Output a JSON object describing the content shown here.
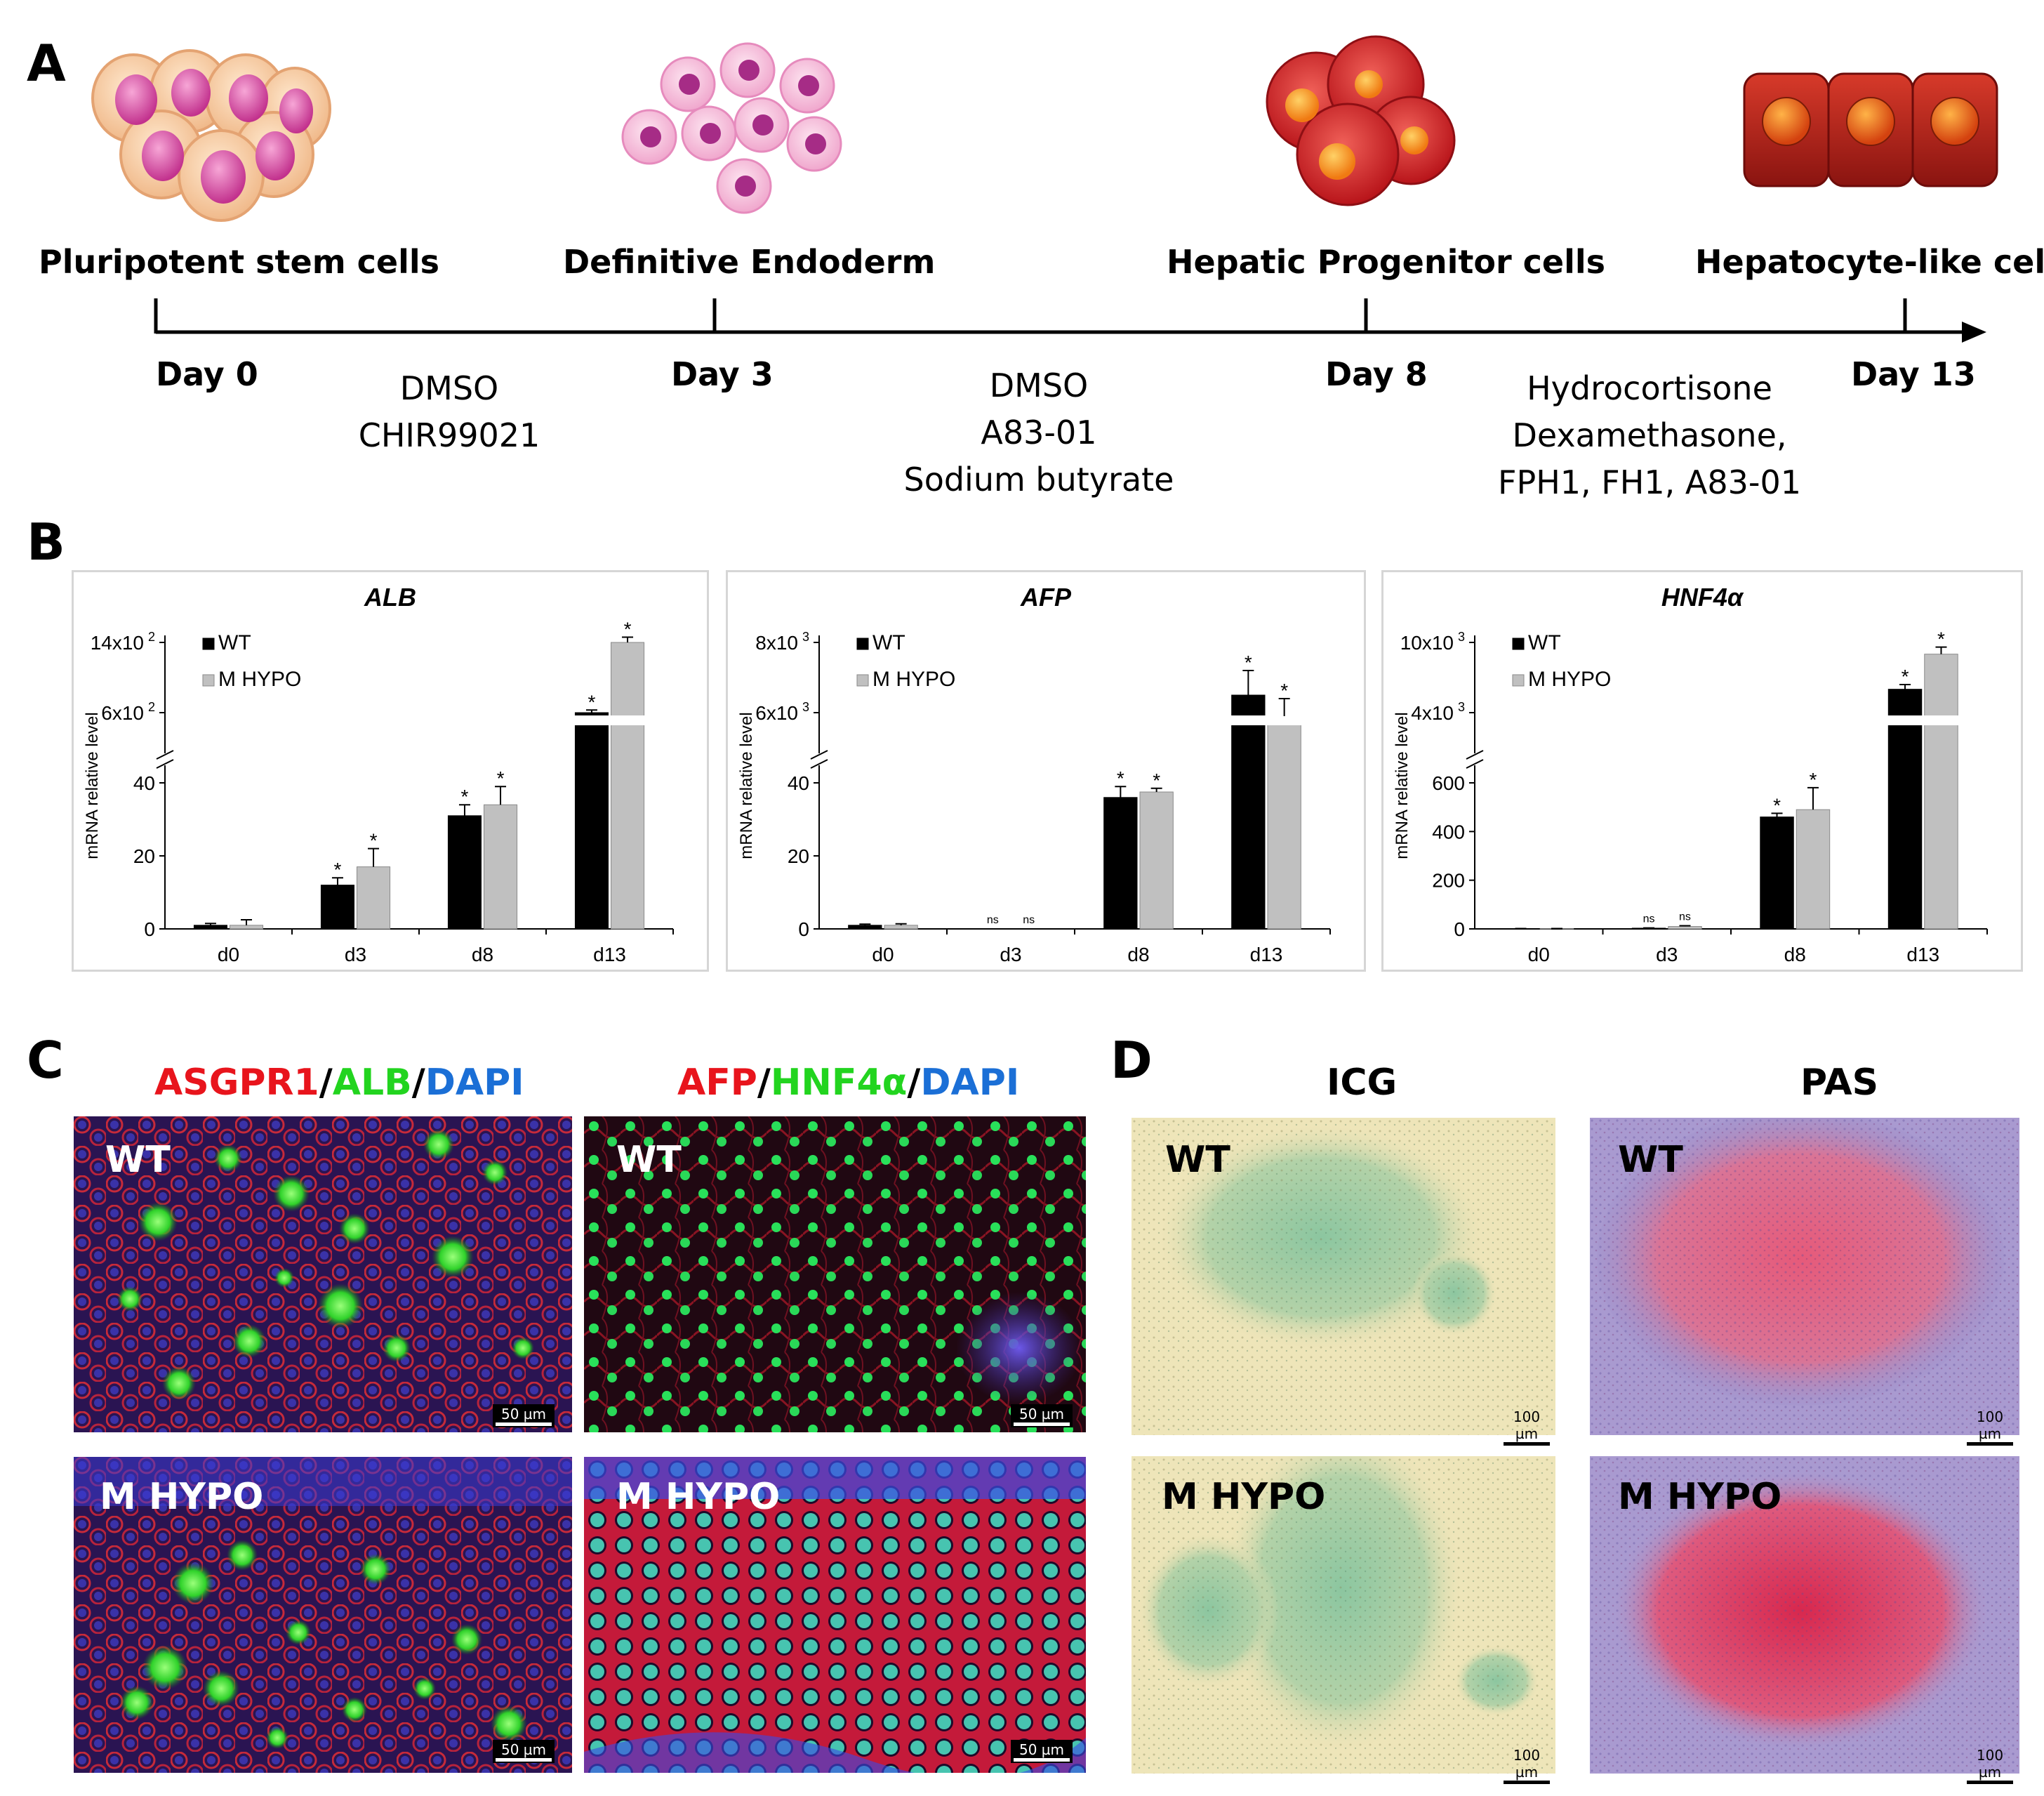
{
  "panels": {
    "a": "A",
    "b": "B",
    "c": "C",
    "d": "D"
  },
  "timeline": {
    "stages": [
      "Pluripotent stem cells",
      "Definitive Endoderm",
      "Hepatic Progenitor cells",
      "Hepatocyte-like cells"
    ],
    "days": [
      "Day 0",
      "Day 3",
      "Day 8",
      "Day 13"
    ],
    "treatments": [
      [
        "DMSO",
        "CHIR99021"
      ],
      [
        "DMSO",
        "A83-01",
        "Sodium butyrate"
      ],
      [
        "Hydrocortisone",
        "Dexamethasone,",
        "FPH1, FH1, A83-01"
      ]
    ]
  },
  "chart_data": [
    {
      "type": "bar",
      "title": "ALB",
      "ylabel": "mRNA relative level",
      "categories": [
        "d0",
        "d3",
        "d8",
        "d13"
      ],
      "lower_ticks": [
        "0",
        "20",
        "40"
      ],
      "upper_ticks": [
        "6x10",
        "14x10"
      ],
      "upper_tick_exp": "2",
      "series": [
        {
          "name": "WT",
          "color": "#000000",
          "values": [
            1,
            12,
            31,
            600
          ],
          "errors": [
            0.5,
            2,
            3,
            30
          ]
        },
        {
          "name": "M HYPO",
          "color": "#c0c0c0",
          "values": [
            1,
            17,
            34,
            1400
          ],
          "errors": [
            1.5,
            5,
            5,
            60
          ]
        }
      ],
      "sig": [
        [
          "",
          "*",
          "*",
          "*"
        ],
        [
          "",
          "*",
          "*",
          "*"
        ]
      ],
      "legend": "top-left",
      "axis_break": true
    },
    {
      "type": "bar",
      "title": "AFP",
      "ylabel": "mRNA relative level",
      "categories": [
        "d0",
        "d3",
        "d8",
        "d13"
      ],
      "lower_ticks": [
        "0",
        "20",
        "40"
      ],
      "upper_ticks": [
        "6x10",
        "8x10"
      ],
      "upper_tick_exp": "3",
      "series": [
        {
          "name": "WT",
          "color": "#000000",
          "values": [
            1,
            0,
            36,
            6500
          ],
          "errors": [
            0.3,
            0,
            3,
            700
          ]
        },
        {
          "name": "M HYPO",
          "color": "#c0c0c0",
          "values": [
            1,
            0,
            37.5,
            5900
          ],
          "errors": [
            0.4,
            0,
            1,
            500
          ]
        }
      ],
      "sig": [
        [
          "",
          "ns",
          "*",
          "*"
        ],
        [
          "",
          "ns",
          "*",
          "*"
        ]
      ],
      "legend": "top-left",
      "axis_break": true
    },
    {
      "type": "bar",
      "title": "HNF4α",
      "ylabel": "mRNA relative level",
      "categories": [
        "d0",
        "d3",
        "d8",
        "d13"
      ],
      "lower_ticks": [
        "0",
        "200",
        "400",
        "600"
      ],
      "upper_ticks": [
        "4x10",
        "10x10"
      ],
      "upper_tick_exp": "3",
      "series": [
        {
          "name": "WT",
          "color": "#000000",
          "values": [
            1,
            3,
            460,
            6000
          ],
          "errors": [
            0.5,
            1,
            15,
            400
          ]
        },
        {
          "name": "M HYPO",
          "color": "#c0c0c0",
          "values": [
            1,
            10,
            490,
            9000
          ],
          "errors": [
            0.5,
            3,
            90,
            600
          ]
        }
      ],
      "sig": [
        [
          "",
          "ns",
          "*",
          "*"
        ],
        [
          "",
          "ns",
          "*",
          "*"
        ]
      ],
      "legend": "top-left",
      "axis_break": true
    }
  ],
  "panel_c": {
    "left_title": {
      "p1": "ASGPR1",
      "s1": "/",
      "p2": "ALB",
      "s2": "/",
      "p3": "DAPI"
    },
    "right_title": {
      "p1": "AFP",
      "s1": "/",
      "p2": "HNF4α",
      "s2": "/",
      "p3": "DAPI"
    },
    "title_colors": {
      "red": "#e8141c",
      "green": "#22d41f",
      "blue": "#1b6fd6"
    },
    "row_labels": [
      "WT",
      "M HYPO"
    ],
    "scale": "50 µm"
  },
  "panel_d": {
    "col_titles": [
      "ICG",
      "PAS"
    ],
    "row_labels": [
      "WT",
      "M HYPO"
    ],
    "scale": "100 µm"
  }
}
